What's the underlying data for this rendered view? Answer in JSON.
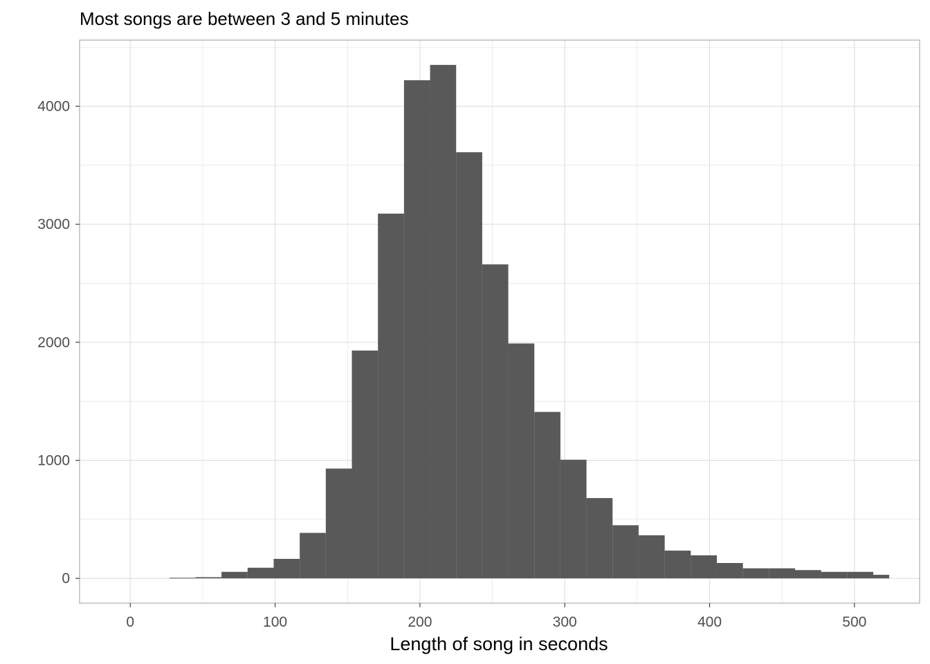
{
  "chart_data": {
    "type": "bar",
    "subtype": "histogram",
    "title": "Most songs are between 3 and 5 minutes",
    "xlabel": "Length of song in seconds",
    "ylabel": "",
    "xlim": [
      -35,
      545
    ],
    "ylim": [
      -210,
      4560
    ],
    "x_ticks": [
      0,
      100,
      200,
      300,
      400,
      500
    ],
    "x_tick_labels": [
      "0",
      "100",
      "200",
      "300",
      "400",
      "500"
    ],
    "y_ticks": [
      0,
      1000,
      2000,
      3000,
      4000
    ],
    "y_tick_labels": [
      "0",
      "1000",
      "2000",
      "3000",
      "4000"
    ],
    "grid": true,
    "legend": "none",
    "colors": {
      "bar": "#595959",
      "grid": "#dedede",
      "panel_border": "#b3b3b3",
      "tick_text": "#4d4d4d",
      "title_text": "#000000"
    },
    "bins": [
      {
        "x0": 27,
        "x1": 45,
        "count": 5
      },
      {
        "x0": 45,
        "x1": 63,
        "count": 10
      },
      {
        "x0": 63,
        "x1": 81,
        "count": 55
      },
      {
        "x0": 81,
        "x1": 99,
        "count": 90
      },
      {
        "x0": 99,
        "x1": 117,
        "count": 165
      },
      {
        "x0": 117,
        "x1": 135,
        "count": 385
      },
      {
        "x0": 135,
        "x1": 153,
        "count": 930
      },
      {
        "x0": 153,
        "x1": 171,
        "count": 1930
      },
      {
        "x0": 171,
        "x1": 189,
        "count": 3090
      },
      {
        "x0": 189,
        "x1": 207,
        "count": 4220
      },
      {
        "x0": 207,
        "x1": 225,
        "count": 4350
      },
      {
        "x0": 225,
        "x1": 243,
        "count": 3610
      },
      {
        "x0": 243,
        "x1": 261,
        "count": 2660
      },
      {
        "x0": 261,
        "x1": 279,
        "count": 1990
      },
      {
        "x0": 279,
        "x1": 297,
        "count": 1410
      },
      {
        "x0": 297,
        "x1": 315,
        "count": 1005
      },
      {
        "x0": 315,
        "x1": 333,
        "count": 680
      },
      {
        "x0": 333,
        "x1": 351,
        "count": 450
      },
      {
        "x0": 351,
        "x1": 369,
        "count": 365
      },
      {
        "x0": 369,
        "x1": 387,
        "count": 235
      },
      {
        "x0": 387,
        "x1": 405,
        "count": 195
      },
      {
        "x0": 405,
        "x1": 423,
        "count": 130
      },
      {
        "x0": 423,
        "x1": 441,
        "count": 85
      },
      {
        "x0": 441,
        "x1": 459,
        "count": 85
      },
      {
        "x0": 459,
        "x1": 477,
        "count": 70
      },
      {
        "x0": 477,
        "x1": 495,
        "count": 55
      },
      {
        "x0": 495,
        "x1": 513,
        "count": 55
      },
      {
        "x0": 513,
        "x1": 524,
        "count": 30
      }
    ]
  }
}
